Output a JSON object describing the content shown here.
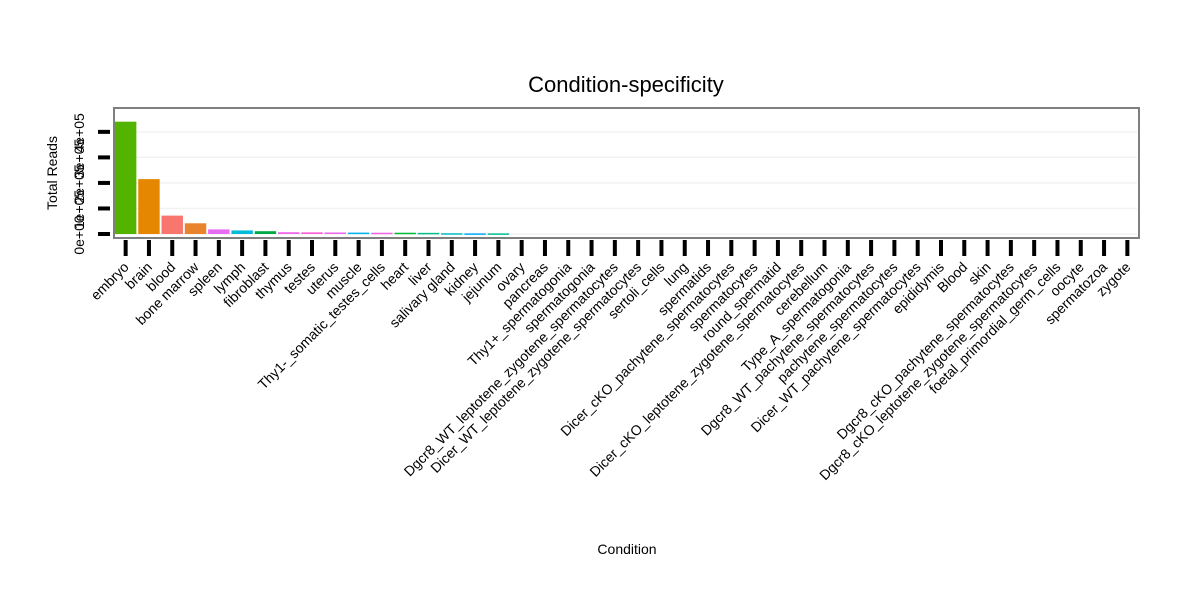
{
  "chart_data": {
    "type": "bar",
    "title": "Condition-specificity",
    "xlabel": "Condition",
    "ylabel": "Total Reads",
    "ylim": [
      0,
      470000
    ],
    "yticks": [
      0,
      100000,
      200000,
      300000,
      400000
    ],
    "ytick_labels": [
      "0e+00",
      "1e+05",
      "2e+05",
      "3e+05",
      "4e+05"
    ],
    "grid": true,
    "legend": "none",
    "categories": [
      "embryo",
      "brain",
      "blood",
      "bone marrow",
      "spleen",
      "lymph",
      "fibroblast",
      "thymus",
      "testes",
      "uterus",
      "muscle",
      "Thy1-_somatic_testes_cells",
      "heart",
      "liver",
      "salivary gland",
      "kidney",
      "jejunum",
      "ovary",
      "pancreas",
      "Thy1+_spermatogonia",
      "spermatogonia",
      "Dgcr8_WT_leptotene_zygotene_spermatocytes",
      "Dicer_WT_leptotene_zygotene_spermatocytes",
      "sertoli_cells",
      "lung",
      "spermatids",
      "Dicer_cKO_pachytene_spermatocytes",
      "spermatocytes",
      "round_spermatid",
      "Dicer_cKO_leptotene_zygotene_spermatocytes",
      "cerebellum",
      "Type_A_spermatogonia",
      "Dgcr8_WT_pachytene_spermatocytes",
      "pachytene_spermatocytes",
      "Dicer_WT_pachytene_spermatocytes",
      "epididymis",
      "Blood",
      "skin",
      "Dgcr8_cKO_pachytene_spermatocytes",
      "Dgcr8_cKO_leptotene_zygotene_spermatocytes",
      "foetal_primordial_germ_cells",
      "oocyte",
      "spermatozoa",
      "zygote"
    ],
    "values": [
      440000,
      215000,
      72000,
      42000,
      18000,
      14000,
      11000,
      7000,
      6500,
      6000,
      5500,
      5000,
      5000,
      4500,
      3000,
      2500,
      2500,
      0,
      0,
      0,
      0,
      0,
      0,
      0,
      0,
      0,
      0,
      0,
      0,
      0,
      0,
      0,
      0,
      0,
      0,
      0,
      0,
      0,
      0,
      0,
      0,
      0,
      0,
      0
    ],
    "colors": [
      "#53b400",
      "#e58700",
      "#f8766d",
      "#e9842c",
      "#e76bf3",
      "#00bcd8",
      "#00ab45",
      "#ef67eb",
      "#fb61d7",
      "#ed68ed",
      "#00b5ee",
      "#f564e3",
      "#00ba38",
      "#00c08b",
      "#00bfc4",
      "#00a9ff",
      "#00c094",
      "#7cae00",
      "#a3a500",
      "#619cff",
      "#00b0f6",
      "#c49a00",
      "#9590ff",
      "#39b600",
      "#00bd5c",
      "#d89000",
      "#a58aff",
      "#bb9d00",
      "#ff6c91",
      "#db72fb",
      "#00c19f",
      "#ff62bc",
      "#f066ea",
      "#fe6e8a",
      "#8ab504",
      "#00b8e7",
      "#ad9c00",
      "#c77cff",
      "#00bfc4",
      "#e08b00",
      "#06a4ff",
      "#00be6c",
      "#b385ff",
      "#f8766d"
    ]
  }
}
